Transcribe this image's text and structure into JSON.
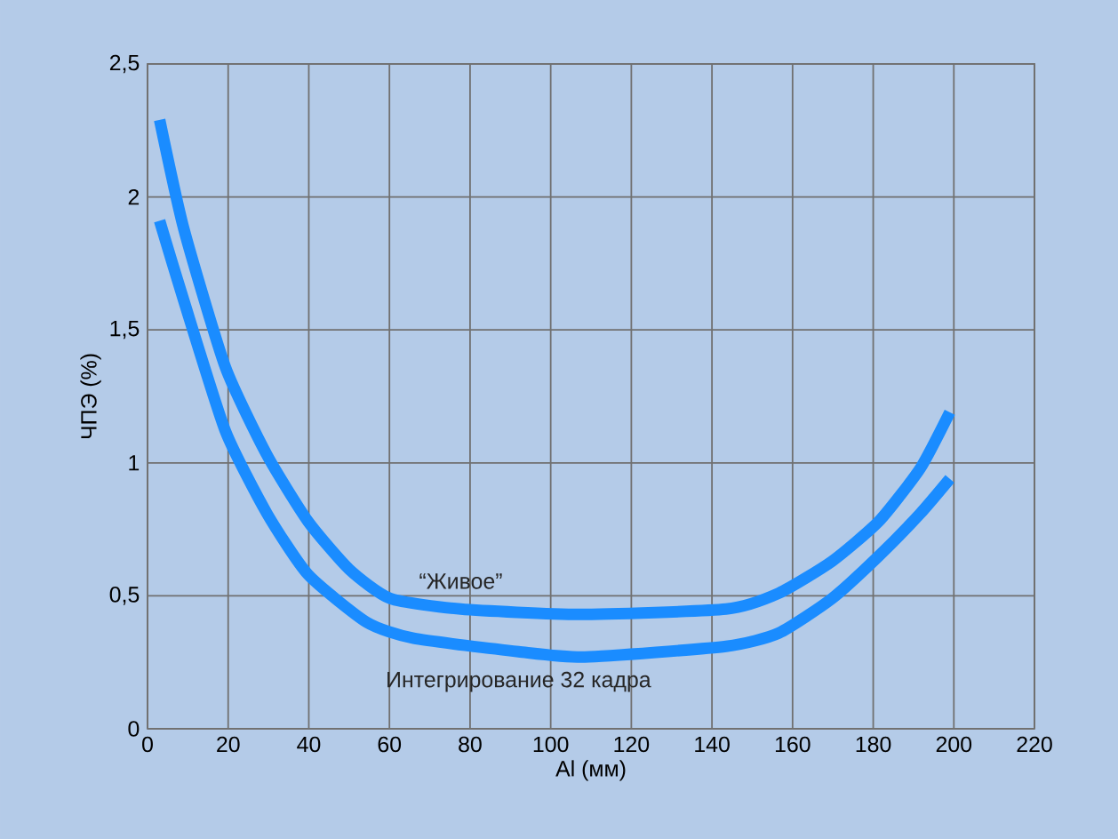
{
  "chart_data": {
    "type": "line",
    "xlabel": "Al (мм)",
    "ylabel": "ЧПЭ (%)",
    "xlim": [
      0,
      220
    ],
    "xticks": [
      0,
      20,
      40,
      60,
      80,
      100,
      120,
      140,
      160,
      180,
      200,
      220
    ],
    "ylim": [
      0,
      2.5
    ],
    "yticks": [
      {
        "value": 0,
        "label": "0"
      },
      {
        "value": 0.5,
        "label": "0,5"
      },
      {
        "value": 1,
        "label": "1"
      },
      {
        "value": 1.5,
        "label": "1,5"
      },
      {
        "value": 2,
        "label": "2"
      },
      {
        "value": 2.5,
        "label": "2,5"
      }
    ],
    "grid": true,
    "line_style": "solid",
    "marker": "none",
    "series": [
      {
        "name": "“Живое”",
        "color": "#1a8cff",
        "x": [
          3,
          9,
          19.3,
          29.6,
          39.8,
          50,
          60.2,
          77.7,
          107,
          143.5,
          156.6,
          169.8,
          181.4,
          191.7,
          199
        ],
        "values": [
          2.29,
          1.88,
          1.36,
          1.03,
          0.78,
          0.6,
          0.49,
          0.45,
          0.43,
          0.45,
          0.51,
          0.63,
          0.78,
          0.98,
          1.19
        ]
      },
      {
        "name": "Интегрирование 32 кадра",
        "color": "#1a8cff",
        "x": [
          3,
          9,
          19.3,
          29.6,
          39.8,
          54.4,
          66,
          92,
          108.5,
          143.5,
          156.6,
          169.8,
          181.4,
          191.7,
          199
        ],
        "values": [
          1.91,
          1.61,
          1.12,
          0.81,
          0.58,
          0.4,
          0.34,
          0.29,
          0.27,
          0.31,
          0.36,
          0.49,
          0.65,
          0.81,
          0.94
        ]
      }
    ]
  }
}
